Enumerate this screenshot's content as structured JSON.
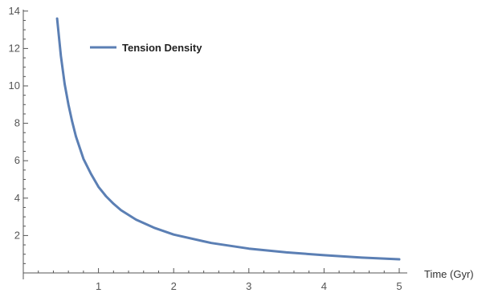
{
  "chart_data": {
    "type": "line",
    "title": "",
    "xlabel": "Time (Gyr)",
    "ylabel": "",
    "xlim": [
      0,
      5
    ],
    "ylim": [
      0,
      14
    ],
    "x_ticks": [
      "1",
      "2",
      "3",
      "4",
      "5"
    ],
    "y_ticks": [
      "2",
      "4",
      "6",
      "8",
      "10",
      "12",
      "14"
    ],
    "grid": false,
    "legend_position": "top-left",
    "series": [
      {
        "name": "Tension Density",
        "color": "#5b7fb4",
        "x": [
          0.45,
          0.5,
          0.55,
          0.6,
          0.65,
          0.7,
          0.8,
          0.9,
          1.0,
          1.1,
          1.2,
          1.3,
          1.5,
          1.75,
          2.0,
          2.5,
          3.0,
          3.5,
          4.0,
          4.5,
          5.0
        ],
        "y": [
          13.6,
          11.6,
          10.1,
          9.0,
          8.1,
          7.3,
          6.1,
          5.3,
          4.6,
          4.1,
          3.7,
          3.35,
          2.85,
          2.4,
          2.05,
          1.6,
          1.3,
          1.1,
          0.95,
          0.82,
          0.73
        ]
      }
    ]
  }
}
